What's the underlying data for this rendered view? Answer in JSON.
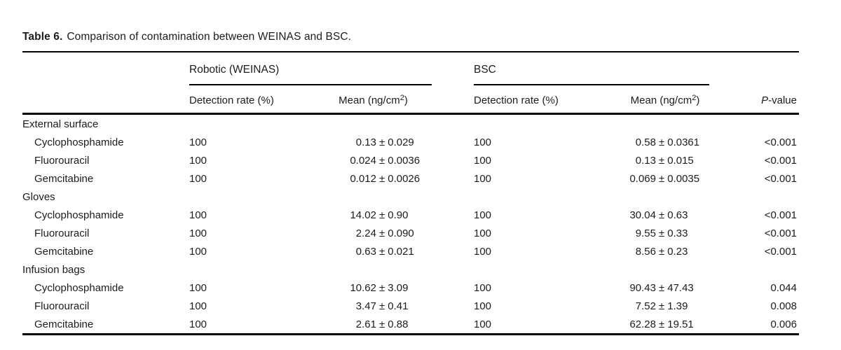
{
  "page": {
    "background": "#ffffff",
    "text_color": "#1c1c1e",
    "rule_color": "#000000"
  },
  "table": {
    "title": {
      "label": "Table 6.",
      "text": "Comparison of contamination between WEINAS and BSC."
    },
    "groups": {
      "robotic": "Robotic (WEINAS)",
      "bsc": "BSC"
    },
    "headers": {
      "detection_rate": "Detection rate (%)",
      "mean_prefix": "Mean (ng/cm",
      "mean_sup": "2",
      "mean_suffix": ")",
      "p_italic": "P",
      "p_rest": "-value"
    },
    "plus_minus": "±",
    "sections": [
      {
        "label": "External surface",
        "rows": [
          {
            "drug": "Cyclophosphamide",
            "w_rate": "100",
            "w_mean": "0.13",
            "w_sd": "0.029",
            "b_rate": "100",
            "b_mean": "0.58",
            "b_sd": "0.0361",
            "p": "<0.001"
          },
          {
            "drug": "Fluorouracil",
            "w_rate": "100",
            "w_mean": "0.024",
            "w_sd": "0.0036",
            "b_rate": "100",
            "b_mean": "0.13",
            "b_sd": "0.015",
            "p": "<0.001"
          },
          {
            "drug": "Gemcitabine",
            "w_rate": "100",
            "w_mean": "0.012",
            "w_sd": "0.0026",
            "b_rate": "100",
            "b_mean": "0.069",
            "b_sd": "0.0035",
            "p": "<0.001"
          }
        ]
      },
      {
        "label": "Gloves",
        "rows": [
          {
            "drug": "Cyclophosphamide",
            "w_rate": "100",
            "w_mean": "14.02",
            "w_sd": "0.90",
            "b_rate": "100",
            "b_mean": "30.04",
            "b_sd": "0.63",
            "p": "<0.001"
          },
          {
            "drug": "Fluorouracil",
            "w_rate": "100",
            "w_mean": "2.24",
            "w_sd": "0.090",
            "b_rate": "100",
            "b_mean": "9.55",
            "b_sd": "0.33",
            "p": "<0.001"
          },
          {
            "drug": "Gemcitabine",
            "w_rate": "100",
            "w_mean": "0.63",
            "w_sd": "0.021",
            "b_rate": "100",
            "b_mean": "8.56",
            "b_sd": "0.23",
            "p": "<0.001"
          }
        ]
      },
      {
        "label": "Infusion bags",
        "rows": [
          {
            "drug": "Cyclophosphamide",
            "w_rate": "100",
            "w_mean": "10.62",
            "w_sd": "3.09",
            "b_rate": "100",
            "b_mean": "90.43",
            "b_sd": "47.43",
            "p": "0.044"
          },
          {
            "drug": "Fluorouracil",
            "w_rate": "100",
            "w_mean": "3.47",
            "w_sd": "0.41",
            "b_rate": "100",
            "b_mean": "7.52",
            "b_sd": "1.39",
            "p": "0.008"
          },
          {
            "drug": "Gemcitabine",
            "w_rate": "100",
            "w_mean": "2.61",
            "w_sd": "0.88",
            "b_rate": "100",
            "b_mean": "62.28",
            "b_sd": "19.51",
            "p": "0.006"
          }
        ]
      }
    ]
  }
}
